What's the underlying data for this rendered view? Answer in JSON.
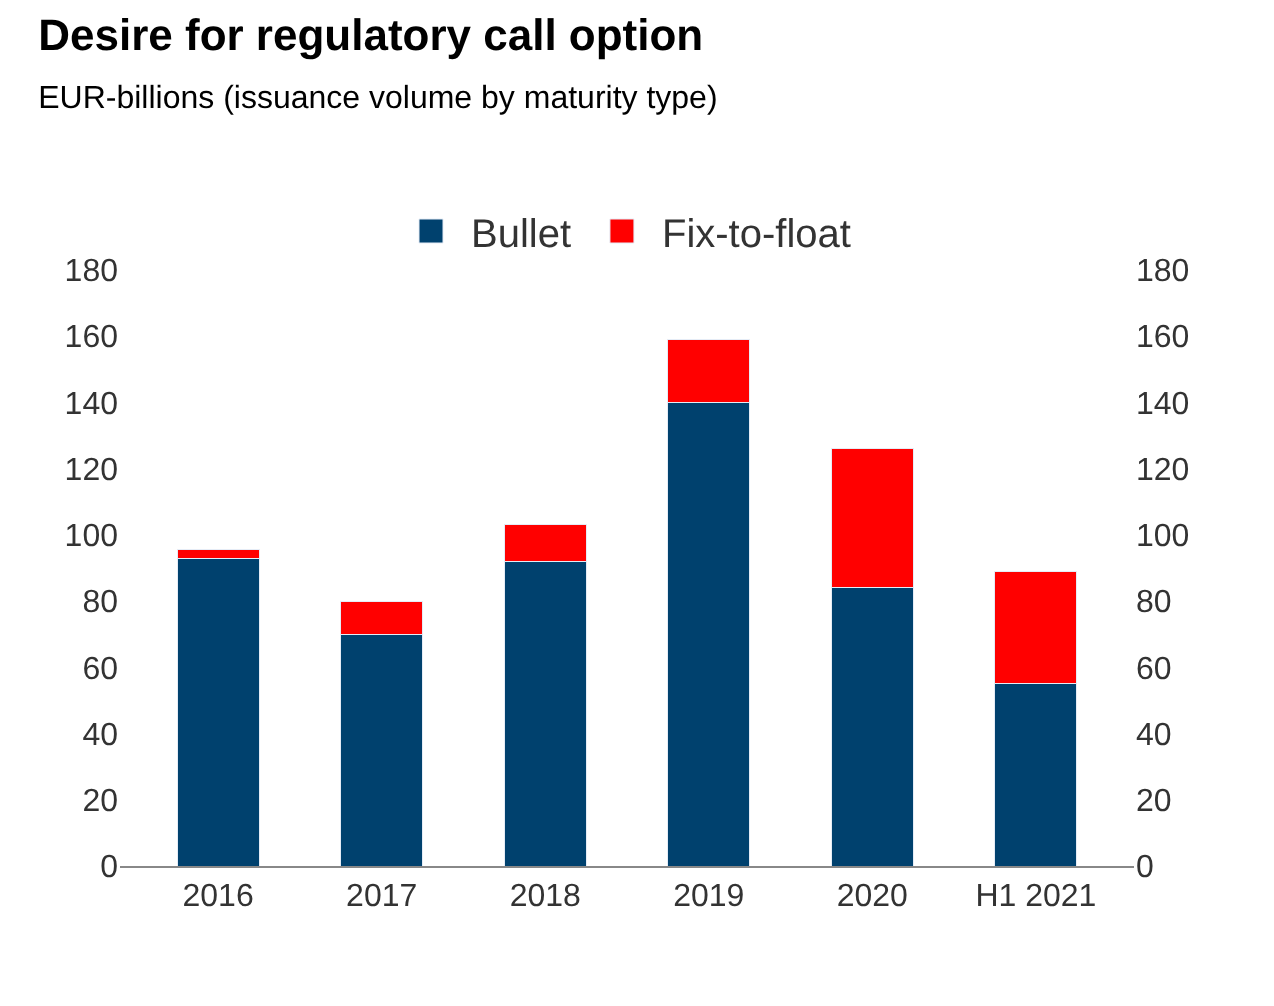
{
  "chart_data": {
    "type": "bar",
    "title": "Desire for regulatory call option",
    "subtitle": "EUR-billions (issuance volume by maturity type)",
    "categories": [
      "2016",
      "2017",
      "2018",
      "2019",
      "2020",
      "H1 2021"
    ],
    "stacked": true,
    "series": [
      {
        "name": "Bullet",
        "color": "#00416e",
        "values": [
          93,
          70,
          92,
          140,
          84,
          55
        ]
      },
      {
        "name": "Fix-to-float",
        "color": "#ff0000",
        "values": [
          2.5,
          10,
          11,
          19,
          42,
          34
        ]
      }
    ],
    "ylim": [
      0,
      180
    ],
    "yticks": [
      0,
      20,
      40,
      60,
      80,
      100,
      120,
      140,
      160,
      180
    ],
    "y2lim": [
      0,
      180
    ],
    "y2ticks": [
      0,
      20,
      40,
      60,
      80,
      100,
      120,
      140,
      160,
      180
    ],
    "legend": "top"
  }
}
